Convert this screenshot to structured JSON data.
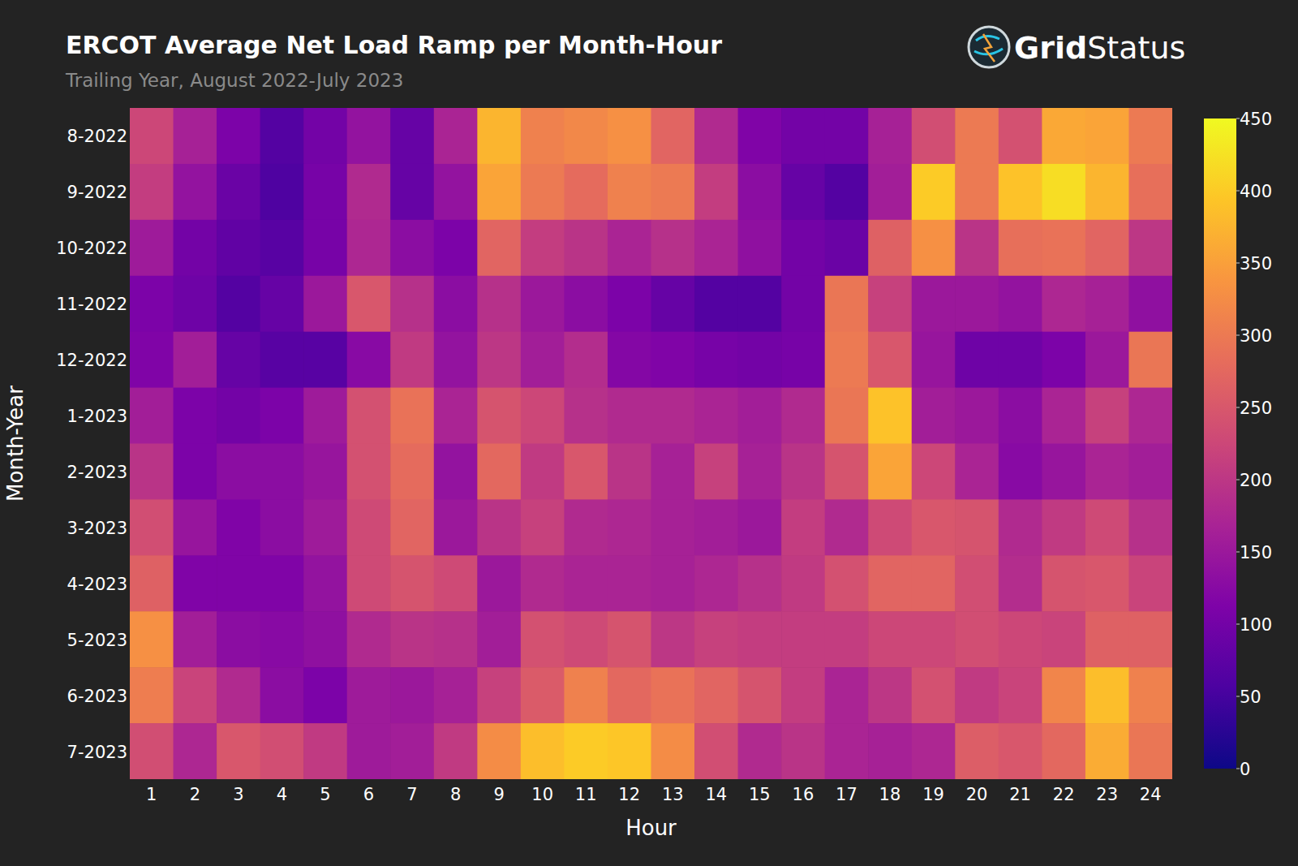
{
  "chart_data": {
    "type": "heatmap",
    "title": "ERCOT Average Net Load Ramp per Month-Hour",
    "subtitle": "Trailing Year, August 2022-July 2023",
    "logo": [
      "Grid",
      "Status"
    ],
    "x_label": "Hour",
    "y_label": "Month-Year",
    "x": [
      1,
      2,
      3,
      4,
      5,
      6,
      7,
      8,
      9,
      10,
      11,
      12,
      13,
      14,
      15,
      16,
      17,
      18,
      19,
      20,
      21,
      22,
      23,
      24
    ],
    "y": [
      "8-2022",
      "9-2022",
      "10-2022",
      "11-2022",
      "12-2022",
      "1-2023",
      "2-2023",
      "3-2023",
      "4-2023",
      "5-2023",
      "6-2023",
      "7-2023"
    ],
    "values": [
      [
        225,
        165,
        110,
        65,
        100,
        140,
        85,
        170,
        375,
        310,
        320,
        330,
        270,
        180,
        115,
        100,
        100,
        165,
        235,
        300,
        240,
        360,
        355,
        300
      ],
      [
        210,
        140,
        90,
        60,
        105,
        180,
        85,
        140,
        355,
        300,
        280,
        310,
        300,
        210,
        130,
        85,
        65,
        160,
        400,
        300,
        390,
        420,
        375,
        285
      ],
      [
        155,
        100,
        80,
        70,
        105,
        175,
        130,
        110,
        270,
        210,
        195,
        170,
        190,
        170,
        135,
        100,
        90,
        265,
        330,
        195,
        285,
        290,
        270,
        200
      ],
      [
        110,
        95,
        65,
        85,
        150,
        250,
        190,
        130,
        190,
        150,
        130,
        110,
        85,
        65,
        65,
        100,
        295,
        215,
        150,
        150,
        140,
        175,
        165,
        135
      ],
      [
        115,
        160,
        85,
        70,
        70,
        125,
        205,
        140,
        200,
        160,
        185,
        120,
        115,
        105,
        100,
        105,
        300,
        250,
        145,
        95,
        95,
        110,
        150,
        295
      ],
      [
        160,
        110,
        100,
        110,
        155,
        240,
        290,
        170,
        245,
        225,
        190,
        180,
        180,
        170,
        160,
        180,
        295,
        390,
        160,
        150,
        130,
        170,
        215,
        175
      ],
      [
        195,
        110,
        130,
        130,
        145,
        240,
        280,
        140,
        275,
        205,
        250,
        195,
        165,
        215,
        165,
        195,
        245,
        355,
        225,
        170,
        125,
        145,
        170,
        160
      ],
      [
        235,
        145,
        115,
        130,
        155,
        230,
        270,
        150,
        195,
        215,
        180,
        175,
        165,
        160,
        150,
        210,
        180,
        230,
        250,
        245,
        180,
        205,
        230,
        190
      ],
      [
        265,
        115,
        115,
        115,
        140,
        230,
        245,
        230,
        150,
        180,
        170,
        170,
        165,
        175,
        190,
        205,
        240,
        270,
        270,
        235,
        185,
        245,
        250,
        220
      ],
      [
        330,
        160,
        130,
        125,
        135,
        180,
        195,
        190,
        160,
        240,
        230,
        245,
        200,
        215,
        210,
        210,
        210,
        225,
        225,
        235,
        225,
        220,
        265,
        265
      ],
      [
        305,
        220,
        180,
        130,
        110,
        155,
        150,
        165,
        215,
        255,
        310,
        275,
        290,
        270,
        245,
        210,
        170,
        200,
        240,
        205,
        220,
        315,
        385,
        310
      ],
      [
        235,
        175,
        250,
        235,
        205,
        155,
        160,
        205,
        325,
        385,
        400,
        395,
        325,
        235,
        180,
        195,
        170,
        165,
        175,
        260,
        250,
        275,
        365,
        295
      ]
    ],
    "colorbar_range": [
      0,
      450
    ],
    "colorbar_ticks": [
      0,
      50,
      100,
      150,
      200,
      250,
      300,
      350,
      400,
      450
    ]
  }
}
